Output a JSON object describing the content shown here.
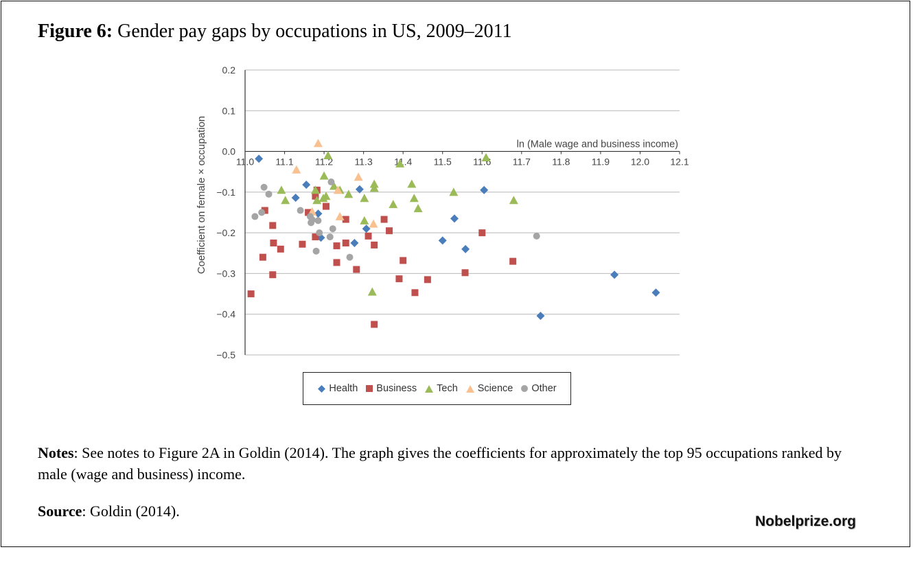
{
  "figure": {
    "label": "Figure 6:",
    "title": "Gender pay gaps by occupations in US, 2009–2011"
  },
  "notes": {
    "label": "Notes",
    "text": ": See notes to Figure 2A in Goldin (2014). The graph gives the coefficients for approximately the top 95 occupations ranked by male (wage and business) income."
  },
  "source": {
    "label": "Source",
    "text": ": Goldin (2014)."
  },
  "brand": "Nobelprize.org",
  "chart_data": {
    "type": "scatter",
    "title": "",
    "xlabel": "ln (Male wage and business income)",
    "ylabel": "Coefficient on female × occupation",
    "xlim": [
      11.0,
      12.1
    ],
    "ylim": [
      -0.5,
      0.2
    ],
    "x_ticks": [
      "11.0",
      "11.1",
      "11.2",
      "11.3",
      "11.4",
      "11.5",
      "11.6",
      "11.7",
      "11.8",
      "11.9",
      "12.0",
      "12.1"
    ],
    "y_ticks": [
      "0.2",
      "0.1",
      "0.0",
      "−0.1",
      "−0.2",
      "−0.3",
      "−0.4",
      "−0.5"
    ],
    "y_tick_values": [
      0.2,
      0.1,
      0.0,
      -0.1,
      -0.2,
      -0.3,
      -0.4,
      -0.5
    ],
    "grid": "horizontal",
    "legend_position": "bottom",
    "series": [
      {
        "name": "Health",
        "marker": "diamond",
        "color": "#4a7ebb",
        "points": [
          [
            11.035,
            -0.018
          ],
          [
            11.155,
            -0.082
          ],
          [
            11.128,
            -0.114
          ],
          [
            11.185,
            -0.153
          ],
          [
            11.192,
            -0.212
          ],
          [
            11.29,
            -0.093
          ],
          [
            11.277,
            -0.225
          ],
          [
            11.307,
            -0.19
          ],
          [
            11.5,
            -0.219
          ],
          [
            11.53,
            -0.165
          ],
          [
            11.558,
            -0.24
          ],
          [
            11.605,
            -0.095
          ],
          [
            11.748,
            -0.404
          ],
          [
            11.935,
            -0.303
          ],
          [
            12.04,
            -0.347
          ]
        ]
      },
      {
        "name": "Business",
        "marker": "square",
        "color": "#c0504d",
        "points": [
          [
            11.015,
            -0.35
          ],
          [
            11.05,
            -0.145
          ],
          [
            11.07,
            -0.182
          ],
          [
            11.072,
            -0.225
          ],
          [
            11.045,
            -0.26
          ],
          [
            11.07,
            -0.303
          ],
          [
            11.09,
            -0.24
          ],
          [
            11.145,
            -0.228
          ],
          [
            11.16,
            -0.15
          ],
          [
            11.178,
            -0.11
          ],
          [
            11.182,
            -0.095
          ],
          [
            11.178,
            -0.21
          ],
          [
            11.205,
            -0.135
          ],
          [
            11.232,
            -0.232
          ],
          [
            11.232,
            -0.273
          ],
          [
            11.255,
            -0.167
          ],
          [
            11.255,
            -0.225
          ],
          [
            11.282,
            -0.29
          ],
          [
            11.312,
            -0.208
          ],
          [
            11.327,
            -0.23
          ],
          [
            11.327,
            -0.425
          ],
          [
            11.352,
            -0.167
          ],
          [
            11.365,
            -0.195
          ],
          [
            11.39,
            -0.313
          ],
          [
            11.4,
            -0.268
          ],
          [
            11.43,
            -0.347
          ],
          [
            11.462,
            -0.315
          ],
          [
            11.557,
            -0.298
          ],
          [
            11.6,
            -0.2
          ],
          [
            11.678,
            -0.27
          ]
        ]
      },
      {
        "name": "Tech",
        "marker": "triangle",
        "color": "#9bbb59",
        "points": [
          [
            11.092,
            -0.095
          ],
          [
            11.102,
            -0.12
          ],
          [
            11.178,
            -0.095
          ],
          [
            11.182,
            -0.12
          ],
          [
            11.198,
            -0.115
          ],
          [
            11.2,
            -0.06
          ],
          [
            11.205,
            -0.11
          ],
          [
            11.21,
            -0.01
          ],
          [
            11.225,
            -0.085
          ],
          [
            11.24,
            -0.095
          ],
          [
            11.262,
            -0.105
          ],
          [
            11.302,
            -0.115
          ],
          [
            11.302,
            -0.17
          ],
          [
            11.327,
            -0.08
          ],
          [
            11.327,
            -0.09
          ],
          [
            11.322,
            -0.345
          ],
          [
            11.375,
            -0.13
          ],
          [
            11.392,
            -0.03
          ],
          [
            11.422,
            -0.08
          ],
          [
            11.428,
            -0.115
          ],
          [
            11.438,
            -0.14
          ],
          [
            11.528,
            -0.1
          ],
          [
            11.61,
            -0.015
          ],
          [
            11.68,
            -0.12
          ]
        ]
      },
      {
        "name": "Science",
        "marker": "triangle",
        "color": "#f9c090",
        "points": [
          [
            11.13,
            -0.045
          ],
          [
            11.17,
            -0.148
          ],
          [
            11.185,
            0.02
          ],
          [
            11.235,
            -0.095
          ],
          [
            11.24,
            -0.16
          ],
          [
            11.287,
            -0.063
          ],
          [
            11.325,
            -0.178
          ]
        ]
      },
      {
        "name": "Other",
        "marker": "circle",
        "color": "#a5a5a5",
        "points": [
          [
            11.025,
            -0.16
          ],
          [
            11.042,
            -0.15
          ],
          [
            11.048,
            -0.088
          ],
          [
            11.06,
            -0.105
          ],
          [
            11.14,
            -0.145
          ],
          [
            11.165,
            -0.16
          ],
          [
            11.167,
            -0.175
          ],
          [
            11.17,
            -0.168
          ],
          [
            11.18,
            -0.245
          ],
          [
            11.185,
            -0.17
          ],
          [
            11.188,
            -0.2
          ],
          [
            11.215,
            -0.21
          ],
          [
            11.218,
            -0.075
          ],
          [
            11.222,
            -0.19
          ],
          [
            11.265,
            -0.26
          ],
          [
            11.738,
            -0.208
          ]
        ]
      }
    ]
  }
}
